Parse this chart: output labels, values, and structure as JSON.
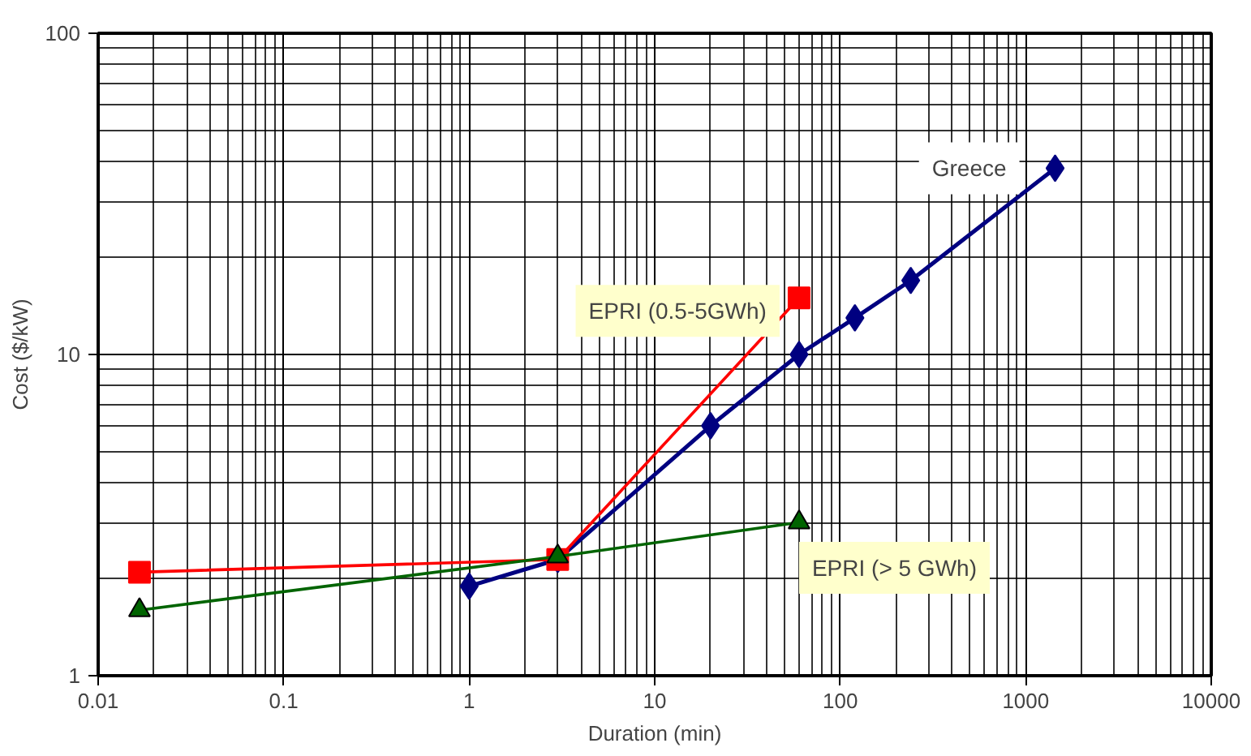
{
  "chart_data": {
    "type": "line",
    "xlabel": "Duration (min)",
    "ylabel": "Cost ($/kW)",
    "log": "xy",
    "grid": true,
    "xlim": [
      0.01,
      10000
    ],
    "ylim": [
      1,
      100
    ],
    "xticks": [
      0.01,
      0.1,
      1,
      10,
      100,
      1000,
      10000
    ],
    "yticks": [
      1,
      10,
      100
    ],
    "series": [
      {
        "name": "Greece",
        "color": "#000080",
        "marker": "diamond",
        "x": [
          1,
          3,
          20,
          60,
          120,
          240,
          1440
        ],
        "values": [
          1.9,
          2.3,
          6,
          10,
          13,
          17,
          38
        ]
      },
      {
        "name": "EPRI (0.5-5GWh)",
        "color": "#ff0000",
        "marker": "square",
        "x": [
          0.0167,
          3,
          60
        ],
        "values": [
          2.1,
          2.3,
          15
        ]
      },
      {
        "name": "EPRI (> 5 GWh)",
        "color": "#006400",
        "marker": "triangle",
        "x": [
          0.0167,
          3,
          60
        ],
        "values": [
          1.6,
          2.35,
          3.0
        ]
      }
    ]
  }
}
